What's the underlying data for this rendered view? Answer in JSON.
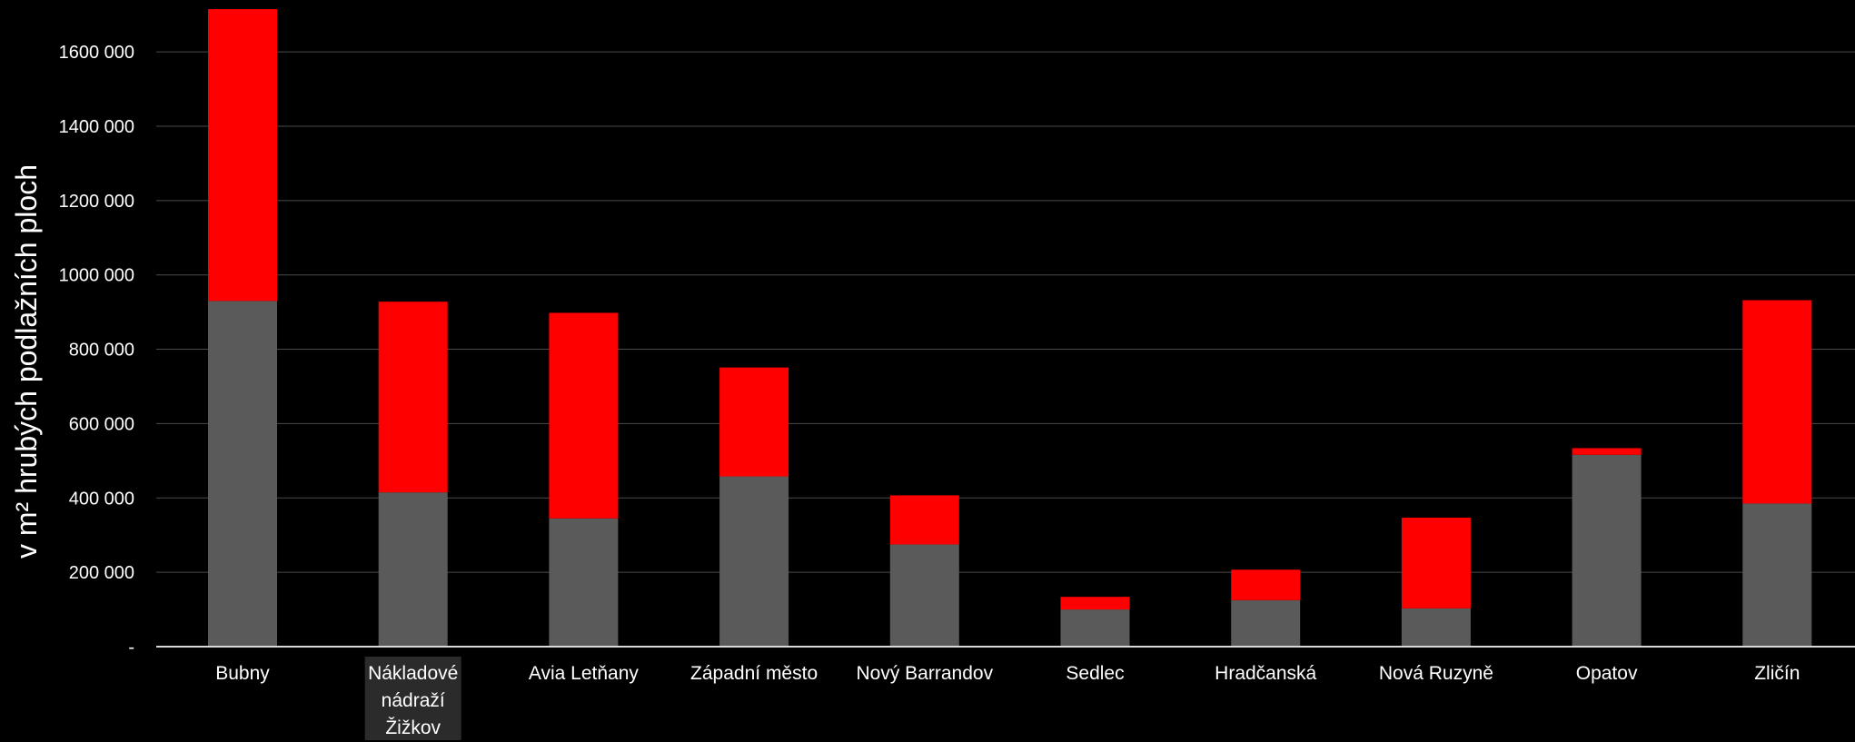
{
  "chart_data": {
    "type": "bar",
    "stacked": true,
    "ylabel": "v m² hrubých podlažních ploch",
    "ylim": [
      0,
      1720000
    ],
    "yticks": [
      0,
      200000,
      400000,
      600000,
      800000,
      1000000,
      1200000,
      1400000,
      1600000
    ],
    "ytick_labels": [
      "-",
      "200 000",
      "400 000",
      "600 000",
      "800 000",
      "1000 000",
      "1200 000",
      "1400 000",
      "1600 000"
    ],
    "grid": true,
    "categories": [
      [
        "Bubny"
      ],
      [
        "Nákladové",
        "nádraží",
        "Žižkov"
      ],
      [
        "Avia Letňany"
      ],
      [
        "Západní město"
      ],
      [
        "Nový Barrandov"
      ],
      [
        "Sedlec"
      ],
      [
        "Hradčanská"
      ],
      [
        "Nová Ruzyně"
      ],
      [
        "Opatov"
      ],
      [
        "Zličín"
      ]
    ],
    "highlighted_category": 1,
    "series": [
      {
        "color": "#5a5a5a",
        "values": [
          930000,
          415000,
          345000,
          458000,
          275000,
          100000,
          125000,
          103000,
          516000,
          385000
        ]
      },
      {
        "color": "#ff0000",
        "values": [
          785000,
          513000,
          553000,
          293000,
          132000,
          34000,
          82000,
          244000,
          18000,
          547000
        ]
      }
    ]
  }
}
